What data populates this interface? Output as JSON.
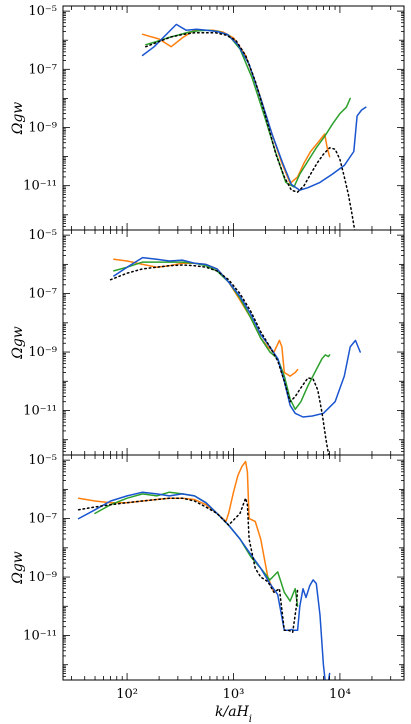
{
  "chart_data": [
    {
      "type": "line",
      "xlabel": "",
      "ylabel": "Ωgw",
      "xscale": "log",
      "yscale": "log",
      "xlim": [
        25,
        40000
      ],
      "ylim": [
        3e-13,
        1.5e-05
      ],
      "yticks": [
        1e-11,
        1e-09,
        1e-07,
        1e-05
      ],
      "ytick_labels": [
        "10⁻¹¹",
        "10⁻⁹",
        "10⁻⁷",
        "10⁻⁵"
      ],
      "series": [
        {
          "color": "#ff7f0e",
          "style": "solid",
          "x": [
            140,
            200,
            260,
            330,
            420,
            520,
            650,
            800,
            1000,
            1300,
            1700,
            2200,
            2800,
            3400,
            4000,
            4600,
            5300,
            6200,
            7200,
            7600,
            8000
          ],
          "y": [
            1.6e-06,
            1.1e-06,
            6e-07,
            1.2e-06,
            2.1e-06,
            2.2e-06,
            2.2e-06,
            1.9e-06,
            1.2e-06,
            3e-07,
            2e-08,
            1e-09,
            7e-11,
            1.2e-11,
            2e-11,
            6e-11,
            1.5e-10,
            3e-10,
            6e-10,
            2e-10,
            1e-10
          ]
        },
        {
          "color": "#2ca02c",
          "style": "solid",
          "x": [
            150,
            190,
            240,
            300,
            380,
            470,
            580,
            720,
            900,
            1150,
            1500,
            1950,
            2500,
            3100,
            3700,
            4200,
            5000,
            6000,
            7200,
            8500,
            10000,
            11500,
            12500
          ],
          "y": [
            7e-07,
            9e-07,
            1.2e-06,
            1.5e-06,
            1.9e-06,
            2.1e-06,
            2.2e-06,
            2e-06,
            1.5e-06,
            5e-07,
            5e-08,
            2.5e-09,
            1.3e-10,
            1.3e-11,
            9e-12,
            2.5e-11,
            7e-11,
            2e-10,
            5e-10,
            1.3e-09,
            3e-09,
            5e-09,
            1e-08
          ]
        },
        {
          "color": "#1a55d0",
          "style": "solid",
          "x": [
            140,
            180,
            230,
            290,
            360,
            450,
            560,
            700,
            870,
            1100,
            1400,
            1800,
            2300,
            2900,
            3500,
            4200,
            5000,
            6500,
            8500,
            11000,
            13500,
            14500,
            16000,
            17500
          ],
          "y": [
            3e-07,
            6e-07,
            1.5e-06,
            3.5e-06,
            2.2e-06,
            2.4e-06,
            2.2e-06,
            2e-06,
            1.6e-06,
            7e-07,
            1.5e-07,
            1e-08,
            6e-10,
            6e-11,
            1.1e-11,
            7e-12,
            8.5e-12,
            1.3e-11,
            2.5e-11,
            5e-11,
            1.5e-10,
            2.5e-09,
            4e-09,
            5e-09
          ]
        },
        {
          "color": "#000000",
          "style": "dotted",
          "x": [
            150,
            200,
            260,
            340,
            430,
            540,
            680,
            850,
            1050,
            1300,
            1600,
            2000,
            2500,
            3000,
            3500,
            4000,
            4600,
            5300,
            6100,
            7000,
            8000,
            9000,
            10000,
            11000,
            12000,
            13000,
            14000
          ],
          "y": [
            6e-07,
            9e-07,
            1.3e-06,
            1.6e-06,
            1.8e-06,
            1.8e-06,
            1.8e-06,
            1.5e-06,
            1e-06,
            3e-07,
            4e-08,
            2.5e-09,
            1.2e-10,
            2e-11,
            7e-12,
            6e-12,
            1e-11,
            2.5e-11,
            6e-11,
            1.2e-10,
            2e-10,
            1.8e-10,
            8e-11,
            2e-11,
            5e-12,
            1e-12,
            2e-13
          ]
        }
      ]
    },
    {
      "type": "line",
      "xlabel": "",
      "ylabel": "Ωgw",
      "xscale": "log",
      "yscale": "log",
      "xlim": [
        25,
        40000
      ],
      "ylim": [
        3e-13,
        1.5e-05
      ],
      "yticks": [
        1e-11,
        1e-09,
        1e-07,
        1e-05
      ],
      "ytick_labels": [
        "10⁻¹¹",
        "10⁻⁹",
        "10⁻⁷",
        "10⁻⁵"
      ],
      "series": [
        {
          "color": "#ff7f0e",
          "style": "solid",
          "x": [
            75,
            100,
            140,
            190,
            250,
            330,
            430,
            550,
            700,
            900,
            1150,
            1450,
            1800,
            2100,
            2400,
            2700,
            2850,
            3000,
            3400,
            3800,
            4000
          ],
          "y": [
            1.5e-06,
            1.3e-06,
            1e-06,
            8e-07,
            9e-07,
            1.1e-06,
            1.1e-06,
            1e-06,
            7e-07,
            2.5e-07,
            6e-08,
            1.5e-08,
            3e-09,
            1.5e-09,
            1e-09,
            2.5e-09,
            1.5e-09,
            2e-10,
            1.5e-10,
            2e-10,
            2.5e-10
          ]
        },
        {
          "color": "#2ca02c",
          "style": "solid",
          "x": [
            75,
            100,
            140,
            190,
            250,
            330,
            430,
            550,
            700,
            900,
            1150,
            1450,
            1800,
            2200,
            2600,
            3000,
            3400,
            3800,
            4300,
            5000,
            6000,
            6800,
            7300,
            7800,
            8000
          ],
          "y": [
            6e-07,
            8e-07,
            1.2e-06,
            1.2e-06,
            1.2e-06,
            1.2e-06,
            1.1e-06,
            9e-07,
            6e-07,
            2.5e-07,
            7e-08,
            1.5e-08,
            3e-09,
            1e-09,
            6e-10,
            1.5e-10,
            2.5e-11,
            1.1e-11,
            2e-11,
            7e-11,
            2.5e-10,
            6e-10,
            8e-10,
            7e-10,
            8e-10
          ]
        },
        {
          "color": "#1a55d0",
          "style": "solid",
          "x": [
            75,
            100,
            140,
            190,
            250,
            330,
            430,
            550,
            700,
            900,
            1150,
            1450,
            1800,
            2200,
            2600,
            3000,
            3400,
            3800,
            4500,
            5500,
            7000,
            9000,
            11000,
            12500,
            14000,
            15500
          ],
          "y": [
            4e-07,
            8e-07,
            1.7e-06,
            1.5e-06,
            1.3e-06,
            1.4e-06,
            1.1e-06,
            1e-06,
            7e-07,
            2.5e-07,
            8e-08,
            2e-08,
            4e-09,
            1.5e-09,
            6e-10,
            1e-10,
            1.5e-11,
            8e-12,
            6e-12,
            6.5e-12,
            8e-12,
            2e-11,
            1.5e-10,
            1.5e-09,
            2.5e-09,
            1e-09
          ]
        },
        {
          "color": "#000000",
          "style": "dotted",
          "x": [
            70,
            100,
            140,
            190,
            250,
            330,
            430,
            550,
            700,
            900,
            1150,
            1450,
            1800,
            2200,
            2600,
            3000,
            3400,
            3800,
            4300,
            5000,
            5600,
            6200,
            6800,
            7400,
            8000
          ],
          "y": [
            3e-07,
            5e-07,
            7e-07,
            8e-07,
            9e-07,
            9.5e-07,
            9e-07,
            8e-07,
            6e-07,
            3e-07,
            1e-07,
            2.5e-08,
            5e-09,
            1.5e-09,
            5e-10,
            1e-10,
            2e-11,
            3e-11,
            6e-11,
            1.3e-10,
            1.2e-10,
            5e-11,
            8e-12,
            1e-12,
            2e-13
          ]
        }
      ]
    },
    {
      "type": "line",
      "xlabel": "k/aH",
      "xlabel_sub": "i",
      "ylabel": "Ωgw",
      "xscale": "log",
      "yscale": "log",
      "xlim": [
        25,
        40000
      ],
      "ylim": [
        3e-13,
        1.5e-05
      ],
      "yticks": [
        1e-11,
        1e-09,
        1e-07,
        1e-05
      ],
      "ytick_labels": [
        "10⁻¹¹",
        "10⁻⁹",
        "10⁻⁷",
        "10⁻⁵"
      ],
      "xticks": [
        100,
        1000,
        10000
      ],
      "xtick_labels": [
        "10²",
        "10³",
        "10⁴"
      ],
      "series": [
        {
          "color": "#ff7f0e",
          "style": "solid",
          "x": [
            35,
            50,
            70,
            100,
            140,
            190,
            250,
            330,
            430,
            550,
            700,
            850,
            900,
            1000,
            1100,
            1200,
            1300,
            1350,
            1400,
            1600,
            1800,
            2100,
            2400
          ],
          "y": [
            5e-07,
            4e-07,
            3.5e-07,
            3.5e-07,
            4e-07,
            4.5e-07,
            5e-07,
            5e-07,
            4.5e-07,
            3e-07,
            1.5e-07,
            8e-08,
            1.5e-07,
            8e-07,
            3e-06,
            6e-06,
            9e-06,
            4e-06,
            1e-07,
            8e-08,
            2e-08,
            1e-09,
            3e-10
          ]
        },
        {
          "color": "#2ca02c",
          "style": "solid",
          "x": [
            50,
            70,
            100,
            140,
            190,
            250,
            330,
            430,
            550,
            700,
            900,
            1150,
            1450,
            1800,
            2200,
            2600,
            3000,
            3400,
            3800,
            4000
          ],
          "y": [
            1.5e-07,
            3e-07,
            5e-07,
            7e-07,
            6e-07,
            8e-07,
            7e-07,
            6e-07,
            3.5e-07,
            1.5e-07,
            6e-08,
            2e-08,
            5e-09,
            2e-09,
            8e-10,
            1.5e-09,
            3e-10,
            1.5e-10,
            4e-10,
            1e-10
          ]
        },
        {
          "color": "#1a55d0",
          "style": "solid",
          "x": [
            35,
            50,
            70,
            100,
            140,
            190,
            250,
            330,
            430,
            550,
            700,
            900,
            1150,
            1450,
            1800,
            2200,
            2600,
            3000,
            3300,
            3500,
            3700,
            4000,
            4200,
            4500,
            4800,
            5200,
            5600,
            6000,
            6500,
            7000,
            7500,
            8000
          ],
          "y": [
            1e-07,
            2e-07,
            4e-07,
            6e-07,
            8e-07,
            7e-07,
            6e-07,
            7e-07,
            6e-07,
            3.5e-07,
            1.5e-07,
            6e-08,
            2e-08,
            6e-09,
            2e-09,
            6e-10,
            2.5e-10,
            1.5e-11,
            1.5e-11,
            1.6e-11,
            1.5e-11,
            1.5e-11,
            1e-10,
            4e-10,
            2e-10,
            5e-10,
            8e-10,
            6e-10,
            5e-11,
            1e-12,
            1e-13,
            5e-13
          ]
        },
        {
          "color": "#000000",
          "style": "dotted",
          "x": [
            35,
            50,
            70,
            100,
            140,
            190,
            250,
            330,
            430,
            550,
            700,
            900,
            1150,
            1300,
            1350,
            1400,
            1600,
            1800,
            2100,
            2400,
            2700,
            3000,
            3300,
            3600,
            3900,
            4000
          ],
          "y": [
            2e-07,
            2.5e-07,
            3e-07,
            3.5e-07,
            4e-07,
            4.5e-07,
            5e-07,
            5e-07,
            4e-07,
            2.5e-07,
            1.5e-07,
            6e-08,
            1.5e-07,
            5e-07,
            3e-07,
            2e-08,
            2e-09,
            1e-09,
            7e-10,
            3e-10,
            4e-10,
            1.5e-11,
            1.5e-11,
            1.3e-11,
            1e-10,
            4e-10
          ]
        }
      ]
    }
  ]
}
